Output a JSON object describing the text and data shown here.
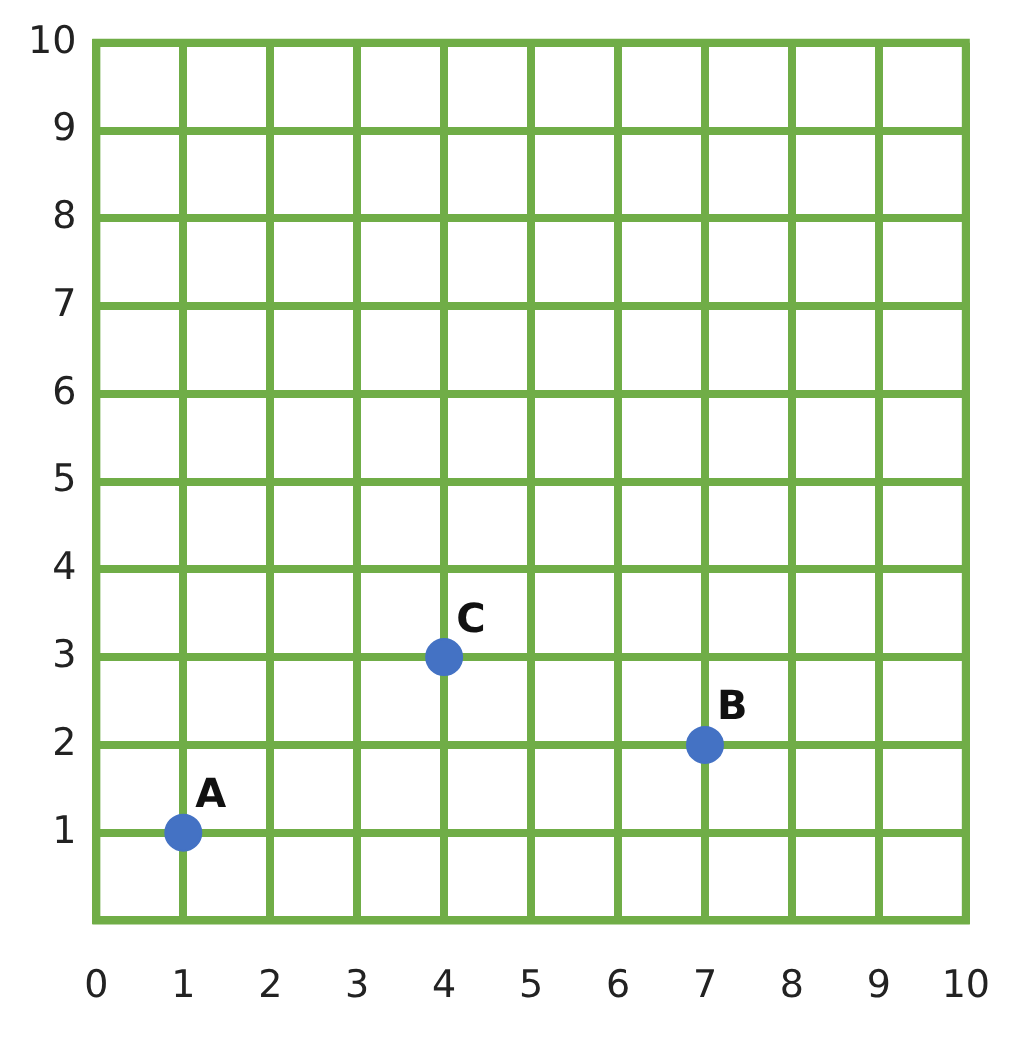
{
  "chart_data": {
    "type": "scatter",
    "x": [
      1,
      7,
      4
    ],
    "values": [
      1,
      2,
      3
    ],
    "color": "#4472c4",
    "marker": "circle",
    "annotations": [
      {
        "text": "A",
        "x": 1,
        "y": 1
      },
      {
        "text": "B",
        "x": 7,
        "y": 2
      },
      {
        "text": "C",
        "x": 4,
        "y": 3
      }
    ],
    "xlim": [
      0,
      10
    ],
    "xticks": [
      0,
      1,
      2,
      3,
      4,
      5,
      6,
      7,
      8,
      9,
      10
    ],
    "ylim": [
      0,
      10
    ],
    "yticks": [
      1,
      2,
      3,
      4,
      5,
      6,
      7,
      8,
      9,
      10
    ],
    "grid": true
  }
}
